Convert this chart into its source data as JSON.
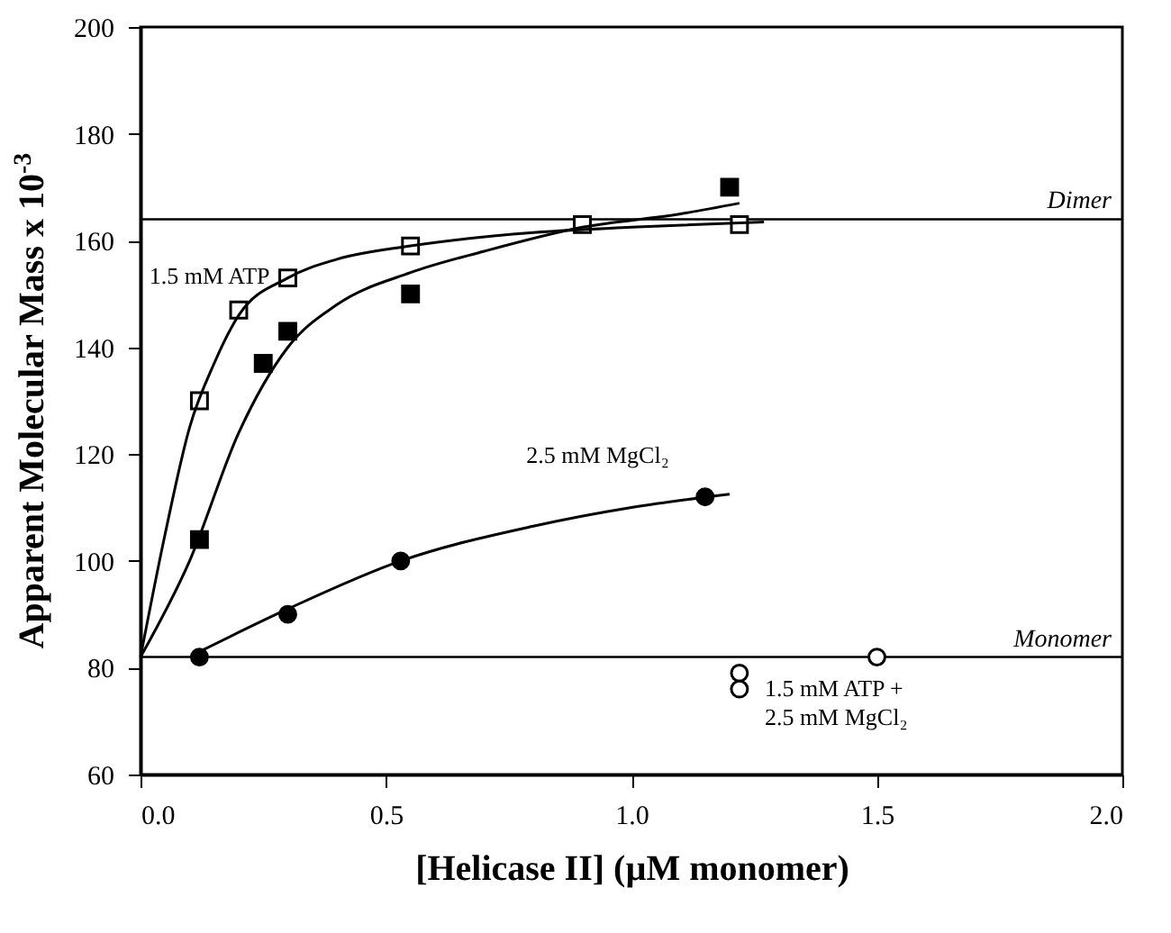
{
  "chart_data": {
    "type": "scatter",
    "xlabel": "[Helicase II] (µM monomer)",
    "ylabel": "Apparent Molecular Mass x 10$^{-3}$",
    "xlim": [
      0,
      2
    ],
    "ylim": [
      60,
      200
    ],
    "xticks": [
      {
        "value": 0,
        "label": "0.0"
      },
      {
        "value": 0.5,
        "label": "0.5"
      },
      {
        "value": 1,
        "label": "1.0"
      },
      {
        "value": 1.5,
        "label": "1.5"
      },
      {
        "value": 2,
        "label": "2.0"
      }
    ],
    "yticks": [
      60,
      80,
      100,
      120,
      140,
      160,
      180,
      200
    ],
    "grid": false,
    "series": [
      {
        "name": "1.5 mM ATP",
        "type": "scatter",
        "marker": "square",
        "color": "#ffffff",
        "x": [
          0.12,
          0.2,
          0.3,
          0.55,
          0.9,
          1.22
        ],
        "values": [
          130,
          147,
          153,
          159,
          163,
          163
        ]
      },
      {
        "type": "scatter",
        "marker": "square",
        "color": "#000000",
        "x": [
          0.12,
          0.25,
          0.3,
          0.55,
          1.2
        ],
        "values": [
          104,
          137,
          143,
          150,
          170
        ]
      },
      {
        "name": "2.5 mM MgCl₂",
        "type": "scatter",
        "marker": "circle",
        "color": "#000000",
        "x": [
          0.12,
          0.3,
          0.53,
          1.15
        ],
        "values": [
          82,
          90,
          100,
          112
        ]
      },
      {
        "name": "1.5 mM ATP + 2.5 mM MgCl₂",
        "type": "scatter",
        "marker": "circle",
        "color": "#ffffff",
        "x": [
          1.22,
          1.22,
          1.5
        ],
        "values": [
          79,
          76,
          82
        ]
      },
      {
        "type": "line",
        "color": "#000000",
        "x": [
          0,
          0.05,
          0.1,
          0.15,
          0.2,
          0.3,
          0.4,
          0.55,
          0.8,
          1.0,
          1.27
        ],
        "values": [
          82,
          105,
          125,
          137,
          146,
          153,
          156.5,
          159,
          161.5,
          162.5,
          163.5
        ]
      },
      {
        "type": "line",
        "color": "#000000",
        "x": [
          0,
          0.1,
          0.2,
          0.3,
          0.4,
          0.55,
          0.7,
          0.9,
          1.1,
          1.22
        ],
        "values": [
          82,
          100,
          124,
          140,
          148,
          154,
          158,
          162.5,
          165,
          167
        ]
      },
      {
        "type": "line",
        "color": "#000000",
        "x": [
          0.12,
          0.3,
          0.53,
          0.8,
          1.0,
          1.2
        ],
        "values": [
          83,
          91,
          100,
          106.5,
          110,
          112.5
        ]
      }
    ],
    "ref_lines": [
      {
        "axis": "y",
        "value": 164,
        "label": "Dimer"
      },
      {
        "axis": "y",
        "value": 82,
        "label": "Monomer"
      }
    ]
  }
}
